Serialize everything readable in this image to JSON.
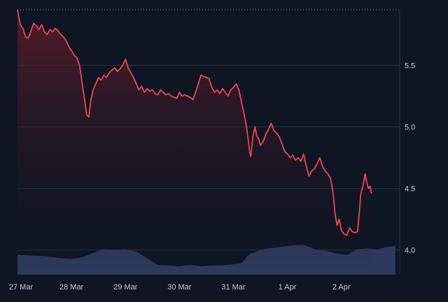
{
  "colors": {
    "background": "#0e1523",
    "grid": "#2a3244",
    "price_line": "#f0464b",
    "area_fill_top": "#6a1f2a",
    "volume_fill": "#2f3c61",
    "label": "#c7cbd3"
  },
  "chart_data": {
    "type": "line",
    "title": "",
    "xlabel": "",
    "ylabel": "",
    "y_axis_position": "right",
    "ylim": [
      3.8,
      5.95
    ],
    "y_ticks": [
      {
        "value": 4.0,
        "label": "4.0"
      },
      {
        "value": 4.5,
        "label": "4.5"
      },
      {
        "value": 5.0,
        "label": "5.0"
      },
      {
        "value": 5.5,
        "label": "5.5"
      }
    ],
    "grid": true,
    "xlim": [
      0,
      7.08
    ],
    "x_ticks": [
      {
        "value": 0,
        "label": "27 Mar"
      },
      {
        "value": 1,
        "label": "28 Mar"
      },
      {
        "value": 2,
        "label": "29 Mar"
      },
      {
        "value": 3,
        "label": "30 Mar"
      },
      {
        "value": 4,
        "label": "31 Mar"
      },
      {
        "value": 5,
        "label": "1 Apr"
      },
      {
        "value": 6,
        "label": "2 Apr"
      }
    ],
    "series": [
      {
        "kind": "price",
        "points": [
          [
            0.0,
            5.95
          ],
          [
            0.05,
            5.83
          ],
          [
            0.1,
            5.8
          ],
          [
            0.15,
            5.73
          ],
          [
            0.2,
            5.72
          ],
          [
            0.25,
            5.78
          ],
          [
            0.3,
            5.84
          ],
          [
            0.35,
            5.82
          ],
          [
            0.4,
            5.79
          ],
          [
            0.45,
            5.83
          ],
          [
            0.5,
            5.77
          ],
          [
            0.55,
            5.75
          ],
          [
            0.6,
            5.79
          ],
          [
            0.65,
            5.77
          ],
          [
            0.7,
            5.8
          ],
          [
            0.75,
            5.78
          ],
          [
            0.8,
            5.75
          ],
          [
            0.85,
            5.73
          ],
          [
            0.9,
            5.7
          ],
          [
            0.95,
            5.65
          ],
          [
            1.0,
            5.62
          ],
          [
            1.05,
            5.58
          ],
          [
            1.1,
            5.56
          ],
          [
            1.15,
            5.5
          ],
          [
            1.2,
            5.35
          ],
          [
            1.25,
            5.2
          ],
          [
            1.28,
            5.1
          ],
          [
            1.32,
            5.08
          ],
          [
            1.36,
            5.22
          ],
          [
            1.4,
            5.3
          ],
          [
            1.45,
            5.35
          ],
          [
            1.5,
            5.4
          ],
          [
            1.55,
            5.38
          ],
          [
            1.6,
            5.42
          ],
          [
            1.65,
            5.4
          ],
          [
            1.7,
            5.44
          ],
          [
            1.75,
            5.46
          ],
          [
            1.8,
            5.48
          ],
          [
            1.85,
            5.45
          ],
          [
            1.9,
            5.47
          ],
          [
            1.95,
            5.5
          ],
          [
            2.0,
            5.55
          ],
          [
            2.05,
            5.48
          ],
          [
            2.1,
            5.44
          ],
          [
            2.15,
            5.4
          ],
          [
            2.2,
            5.35
          ],
          [
            2.25,
            5.3
          ],
          [
            2.3,
            5.33
          ],
          [
            2.35,
            5.28
          ],
          [
            2.4,
            5.31
          ],
          [
            2.45,
            5.29
          ],
          [
            2.5,
            5.3
          ],
          [
            2.55,
            5.27
          ],
          [
            2.6,
            5.26
          ],
          [
            2.65,
            5.3
          ],
          [
            2.7,
            5.28
          ],
          [
            2.75,
            5.26
          ],
          [
            2.8,
            5.27
          ],
          [
            2.85,
            5.25
          ],
          [
            2.9,
            5.24
          ],
          [
            2.95,
            5.23
          ],
          [
            3.0,
            5.28
          ],
          [
            3.05,
            5.25
          ],
          [
            3.1,
            5.26
          ],
          [
            3.15,
            5.25
          ],
          [
            3.2,
            5.24
          ],
          [
            3.25,
            5.22
          ],
          [
            3.3,
            5.28
          ],
          [
            3.35,
            5.35
          ],
          [
            3.4,
            5.42
          ],
          [
            3.45,
            5.41
          ],
          [
            3.5,
            5.4
          ],
          [
            3.55,
            5.39
          ],
          [
            3.6,
            5.32
          ],
          [
            3.65,
            5.28
          ],
          [
            3.7,
            5.3
          ],
          [
            3.75,
            5.27
          ],
          [
            3.8,
            5.31
          ],
          [
            3.85,
            5.28
          ],
          [
            3.9,
            5.25
          ],
          [
            3.95,
            5.3
          ],
          [
            4.0,
            5.32
          ],
          [
            4.05,
            5.35
          ],
          [
            4.1,
            5.3
          ],
          [
            4.15,
            5.2
          ],
          [
            4.2,
            5.1
          ],
          [
            4.25,
            4.98
          ],
          [
            4.3,
            4.8
          ],
          [
            4.32,
            4.76
          ],
          [
            4.36,
            4.92
          ],
          [
            4.4,
            5.0
          ],
          [
            4.43,
            4.93
          ],
          [
            4.47,
            4.9
          ],
          [
            4.5,
            4.85
          ],
          [
            4.55,
            4.88
          ],
          [
            4.6,
            4.94
          ],
          [
            4.65,
            4.98
          ],
          [
            4.7,
            5.03
          ],
          [
            4.75,
            4.97
          ],
          [
            4.8,
            4.95
          ],
          [
            4.85,
            4.92
          ],
          [
            4.9,
            4.86
          ],
          [
            4.95,
            4.8
          ],
          [
            5.0,
            4.78
          ],
          [
            5.05,
            4.75
          ],
          [
            5.1,
            4.77
          ],
          [
            5.15,
            4.73
          ],
          [
            5.2,
            4.75
          ],
          [
            5.25,
            4.72
          ],
          [
            5.3,
            4.78
          ],
          [
            5.35,
            4.68
          ],
          [
            5.4,
            4.6
          ],
          [
            5.45,
            4.64
          ],
          [
            5.5,
            4.66
          ],
          [
            5.55,
            4.7
          ],
          [
            5.6,
            4.75
          ],
          [
            5.65,
            4.68
          ],
          [
            5.7,
            4.64
          ],
          [
            5.75,
            4.62
          ],
          [
            5.8,
            4.58
          ],
          [
            5.85,
            4.45
          ],
          [
            5.88,
            4.3
          ],
          [
            5.92,
            4.2
          ],
          [
            5.96,
            4.25
          ],
          [
            6.0,
            4.16
          ],
          [
            6.05,
            4.13
          ],
          [
            6.1,
            4.12
          ],
          [
            6.15,
            4.18
          ],
          [
            6.2,
            4.15
          ],
          [
            6.25,
            4.14
          ],
          [
            6.3,
            4.15
          ],
          [
            6.33,
            4.3
          ],
          [
            6.36,
            4.46
          ],
          [
            6.4,
            4.52
          ],
          [
            6.44,
            4.62
          ],
          [
            6.47,
            4.55
          ],
          [
            6.5,
            4.5
          ],
          [
            6.53,
            4.52
          ],
          [
            6.56,
            4.46
          ]
        ]
      },
      {
        "kind": "volume",
        "points": [
          [
            0.0,
            0.48
          ],
          [
            0.5,
            0.47
          ],
          [
            0.8,
            0.4
          ],
          [
            1.0,
            0.4
          ],
          [
            1.2,
            0.42
          ],
          [
            1.4,
            0.55
          ],
          [
            1.6,
            0.62
          ],
          [
            1.8,
            0.62
          ],
          [
            2.0,
            0.62
          ],
          [
            2.2,
            0.58
          ],
          [
            2.4,
            0.4
          ],
          [
            2.6,
            0.25
          ],
          [
            2.8,
            0.22
          ],
          [
            3.0,
            0.22
          ],
          [
            3.2,
            0.23
          ],
          [
            3.4,
            0.22
          ],
          [
            3.6,
            0.22
          ],
          [
            3.8,
            0.24
          ],
          [
            4.0,
            0.25
          ],
          [
            4.15,
            0.3
          ],
          [
            4.3,
            0.5
          ],
          [
            4.5,
            0.62
          ],
          [
            4.7,
            0.65
          ],
          [
            4.9,
            0.7
          ],
          [
            5.1,
            0.72
          ],
          [
            5.3,
            0.75
          ],
          [
            5.5,
            0.62
          ],
          [
            5.7,
            0.6
          ],
          [
            5.9,
            0.52
          ],
          [
            6.1,
            0.5
          ],
          [
            6.3,
            0.62
          ],
          [
            6.5,
            0.66
          ],
          [
            6.65,
            0.61
          ],
          [
            6.8,
            0.68
          ],
          [
            7.0,
            0.7
          ]
        ]
      }
    ],
    "price_last": 4.46
  }
}
